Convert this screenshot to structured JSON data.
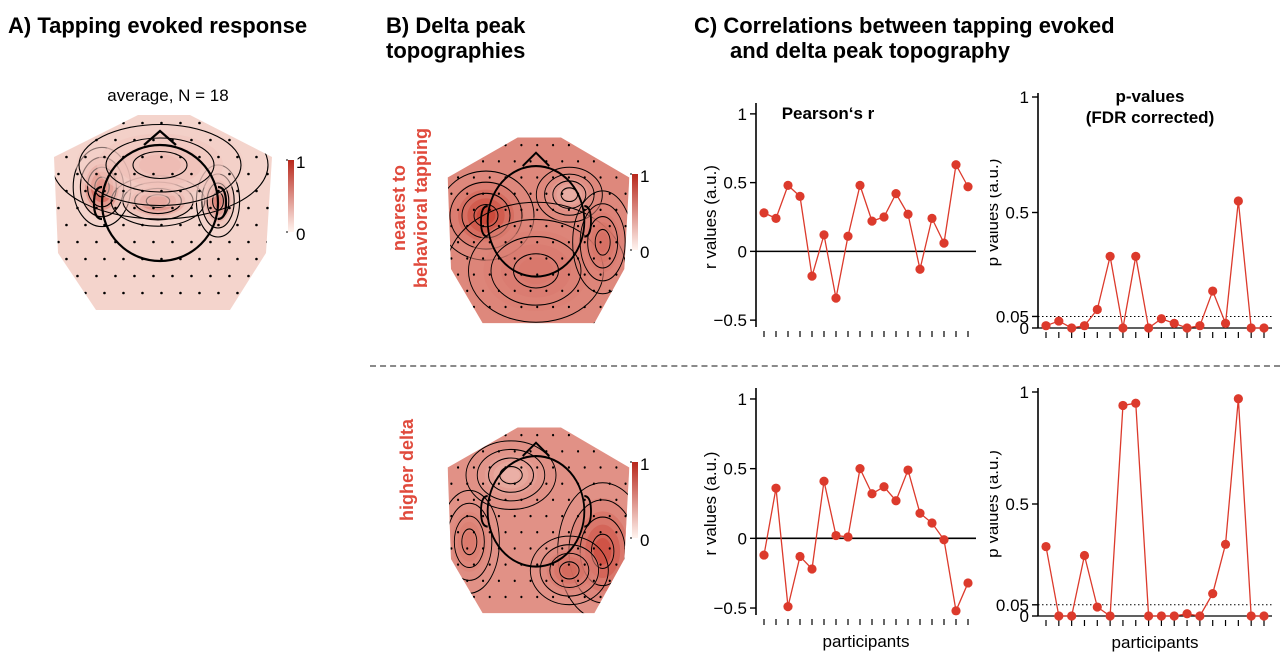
{
  "panel_a": {
    "title": "A) Tapping evoked response",
    "map_title": "average, N = 18",
    "cbar": {
      "max_label": "1",
      "min_label": "0"
    }
  },
  "panel_b": {
    "title_line1": "B) Delta peak",
    "title_line2": "topographies",
    "rows": [
      {
        "label_line1": "nearest to",
        "label_line2": "behavioral tapping"
      },
      {
        "label_line1": "higher delta",
        "label_line2": ""
      }
    ],
    "cbar": {
      "max_label": "1",
      "min_label": "0"
    }
  },
  "panel_c": {
    "title_line1": "C) Correlations between tapping evoked",
    "title_line2": "and delta peak topography",
    "col1_title": "Pearson‘s r",
    "col2_title_line1": "p-values",
    "col2_title_line2": "(FDR corrected)"
  },
  "colors": {
    "series": "#dc3a2c",
    "topo_light": "#fbe9e2",
    "topo_dark": "#b8281c",
    "divider": "#8a8a8a"
  },
  "chart_data": [
    {
      "id": "r_nearest",
      "type": "line",
      "title": "Pearson‘s r",
      "ylabel": "r values (a.u.)",
      "xlabel": "",
      "ylim": [
        -0.55,
        1.05
      ],
      "yticks": [
        {
          "v": 1,
          "label": "1"
        },
        {
          "v": 0.5,
          "label": "0.5"
        },
        {
          "v": 0,
          "label": "0"
        },
        {
          "v": -0.5,
          "label": "−0.5"
        }
      ],
      "hline": 0,
      "values": [
        0.28,
        0.24,
        0.48,
        0.4,
        -0.18,
        0.12,
        -0.34,
        0.11,
        0.48,
        0.22,
        0.25,
        0.42,
        0.27,
        -0.13,
        0.24,
        0.06,
        0.63,
        0.47
      ]
    },
    {
      "id": "p_nearest",
      "type": "line",
      "title": "p-values (FDR corrected)",
      "ylabel": "p values (a.u.)",
      "xlabel": "",
      "ylim": [
        0,
        1.0
      ],
      "yticks": [
        {
          "v": 1,
          "label": "1"
        },
        {
          "v": 0.5,
          "label": "0.5"
        },
        {
          "v": 0.05,
          "label": "0.05"
        },
        {
          "v": 0,
          "label": "0"
        }
      ],
      "threshold": 0.05,
      "values": [
        0.01,
        0.03,
        0.0,
        0.01,
        0.08,
        0.31,
        0.0,
        0.31,
        0.0,
        0.04,
        0.02,
        0.0,
        0.01,
        0.16,
        0.02,
        0.55,
        0.0,
        0.0
      ]
    },
    {
      "id": "r_higher",
      "type": "line",
      "ylabel": "r values (a.u.)",
      "xlabel": "participants",
      "ylim": [
        -0.55,
        1.05
      ],
      "yticks": [
        {
          "v": 1,
          "label": "1"
        },
        {
          "v": 0.5,
          "label": "0.5"
        },
        {
          "v": 0,
          "label": "0"
        },
        {
          "v": -0.5,
          "label": "−0.5"
        }
      ],
      "hline": 0,
      "values": [
        -0.12,
        0.36,
        -0.49,
        -0.13,
        -0.22,
        0.41,
        0.02,
        0.01,
        0.5,
        0.32,
        0.37,
        0.27,
        0.49,
        0.18,
        0.11,
        -0.01,
        -0.52,
        -0.32
      ]
    },
    {
      "id": "p_higher",
      "type": "line",
      "ylabel": "p values (a.u.)",
      "xlabel": "participants",
      "ylim": [
        0,
        1.0
      ],
      "yticks": [
        {
          "v": 1,
          "label": "1"
        },
        {
          "v": 0.5,
          "label": "0.5"
        },
        {
          "v": 0.05,
          "label": "0.05"
        },
        {
          "v": 0,
          "label": "0"
        }
      ],
      "threshold": 0.05,
      "values": [
        0.31,
        0.0,
        0.0,
        0.27,
        0.04,
        0.0,
        0.94,
        0.95,
        0.0,
        0.0,
        0.0,
        0.01,
        0.0,
        0.1,
        0.32,
        0.97,
        0.0,
        0.0
      ]
    }
  ]
}
